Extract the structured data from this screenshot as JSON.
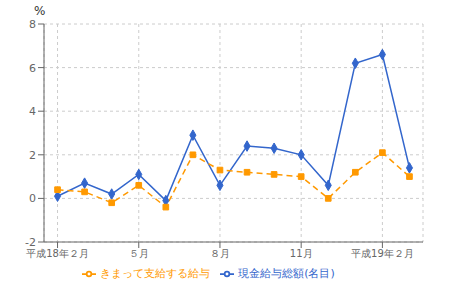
{
  "chart_data": {
    "type": "line",
    "y_label": "%",
    "x": [
      0,
      1,
      2,
      3,
      4,
      5,
      6,
      7,
      8,
      9,
      10,
      11,
      12,
      13
    ],
    "series": [
      {
        "name": "現金給与総額(名目)",
        "color": "#3366cc",
        "marker": "diamond",
        "line_style": "solid",
        "values": [
          0.1,
          0.7,
          0.2,
          1.1,
          -0.1,
          2.9,
          0.6,
          2.4,
          2.3,
          2.0,
          0.6,
          6.2,
          6.6,
          1.4
        ]
      },
      {
        "name": "きまって支給する給与",
        "color": "#ff9900",
        "marker": "square",
        "line_style": "dashed",
        "values": [
          0.4,
          0.3,
          -0.2,
          0.6,
          -0.4,
          2.0,
          1.3,
          1.2,
          1.1,
          1.0,
          0.0,
          1.2,
          2.1,
          1.0
        ]
      }
    ],
    "xlim": [
      -0.5,
      13.5
    ],
    "xticks": [
      {
        "value": 0,
        "label": "平成18年２月"
      },
      {
        "value": 3,
        "label": "５月"
      },
      {
        "value": 6,
        "label": "８月"
      },
      {
        "value": 9,
        "label": "11月"
      },
      {
        "value": 12,
        "label": "平成19年２月"
      }
    ],
    "ylim": [
      -2.0,
      8.0
    ],
    "yticks": [
      -2.0,
      0.0,
      2.0,
      4.0,
      6.0,
      8.0
    ],
    "grid": true,
    "legend": "bottom"
  }
}
